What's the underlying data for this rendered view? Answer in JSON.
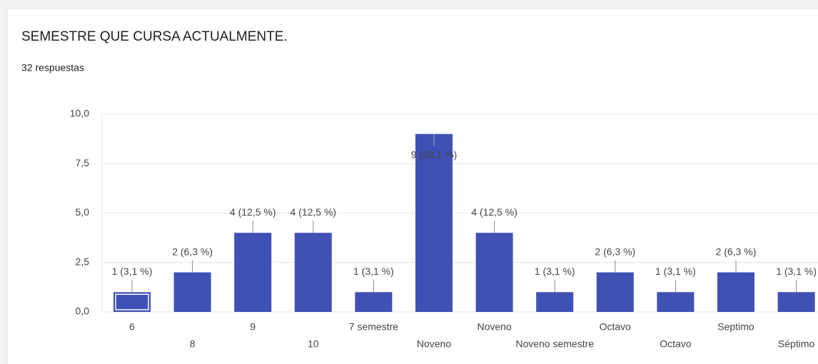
{
  "chart_data": {
    "type": "bar",
    "title": "SEMESTRE QUE CURSA ACTUALMENTE.",
    "subtitle": "32 respuestas",
    "categories": [
      "6",
      "8",
      "9",
      "10",
      "7 semestre",
      "Noveno",
      "Noveno",
      "Noveno semestre",
      "Octavo",
      "Octavo",
      "Septimo",
      "Séptimo"
    ],
    "values": [
      1,
      2,
      4,
      4,
      1,
      9,
      4,
      1,
      2,
      1,
      2,
      1
    ],
    "value_labels": [
      "1 (3,1 %)",
      "2 (6,3 %)",
      "4 (12,5 %)",
      "4 (12,5 %)",
      "1 (3,1 %)",
      "9 (28,1 %)",
      "4 (12,5 %)",
      "1 (3,1 %)",
      "2 (6,3 %)",
      "1 (3,1 %)",
      "2 (6,3 %)",
      "1 (3,1 %)"
    ],
    "color": "#3f51b5",
    "ylim": [
      0,
      10
    ],
    "yticks": [
      {
        "value": 0,
        "label": "0,0"
      },
      {
        "value": 2.5,
        "label": "2,5"
      },
      {
        "value": 5,
        "label": "5,0"
      },
      {
        "value": 7.5,
        "label": "7,5"
      },
      {
        "value": 10,
        "label": "10,0"
      }
    ],
    "grid": true
  }
}
